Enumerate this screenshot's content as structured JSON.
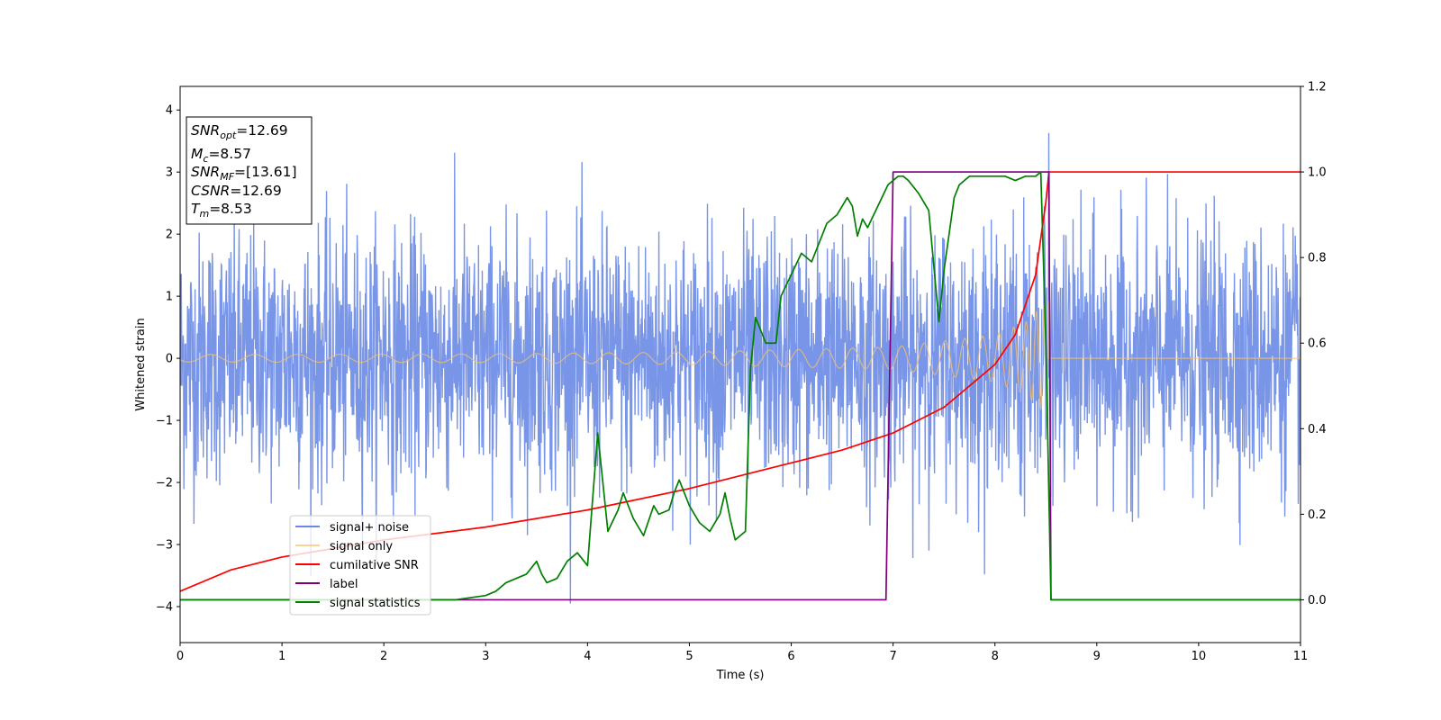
{
  "chart_data": {
    "type": "line",
    "xlabel": "Time (s)",
    "ylabel": "Whitened strain",
    "xlim": [
      0,
      11
    ],
    "ylim_left": [
      -4.58,
      4.38
    ],
    "ylim_right": [
      -0.1,
      1.2
    ],
    "x_ticks": [
      0,
      1,
      2,
      3,
      4,
      5,
      6,
      7,
      8,
      9,
      10,
      11
    ],
    "y_ticks_left": [
      -4,
      -3,
      -2,
      -1,
      0,
      1,
      2,
      3,
      4
    ],
    "y_ticks_right": [
      0.0,
      0.2,
      0.4,
      0.6,
      0.8,
      1.0,
      1.2
    ],
    "grid": false,
    "legend_position": "lower-left",
    "annotation": {
      "lines": [
        {
          "sym": "SNR",
          "sub": "opt",
          "value": "=12.69"
        },
        {
          "sym": "M",
          "sub": "c",
          "value": "=8.57"
        },
        {
          "sym": "SNR",
          "sub": "MF",
          "value": "=[13.61]"
        },
        {
          "sym": "CSNR",
          "sub": "",
          "value": "=12.69"
        },
        {
          "sym": "T",
          "sub": "m",
          "value": "=8.53"
        }
      ]
    },
    "series": [
      {
        "name": "signal+ noise",
        "axis": "left",
        "color": "#6a8ae6",
        "description_kind": "noise",
        "noise_sigma": 1.0,
        "noise_amplitude_range": [
          -4.15,
          4.0
        ]
      },
      {
        "name": "signal only",
        "axis": "left",
        "color": "#f5c26b",
        "description_kind": "chirp",
        "merger_time": 8.53,
        "amplitude_envelope": [
          [
            0,
            0.06
          ],
          [
            3,
            0.07
          ],
          [
            5,
            0.1
          ],
          [
            7,
            0.18
          ],
          [
            8,
            0.38
          ],
          [
            8.3,
            0.58
          ],
          [
            8.5,
            0.9
          ],
          [
            8.53,
            0.92
          ]
        ]
      },
      {
        "name": "cumilative SNR",
        "axis": "right",
        "color": "#ff0000",
        "x": [
          0,
          0.5,
          1,
          2,
          3,
          4,
          5,
          6,
          6.5,
          7,
          7.5,
          8,
          8.2,
          8.4,
          8.5,
          8.53,
          11
        ],
        "y": [
          0.02,
          0.07,
          0.1,
          0.14,
          0.17,
          0.21,
          0.26,
          0.32,
          0.35,
          0.39,
          0.45,
          0.55,
          0.62,
          0.76,
          0.93,
          1.0,
          1.0
        ]
      },
      {
        "name": "label",
        "axis": "right",
        "color": "#7f007f",
        "x": [
          0,
          6.93,
          7.0,
          8.53,
          8.55,
          11
        ],
        "y": [
          0,
          0,
          1,
          1,
          0,
          0
        ]
      },
      {
        "name": "signal statistics",
        "axis": "right",
        "color": "#007f00",
        "x": [
          0,
          0.5,
          1,
          1.5,
          2,
          2.5,
          2.7,
          3,
          3.1,
          3.2,
          3.3,
          3.4,
          3.5,
          3.55,
          3.6,
          3.7,
          3.8,
          3.9,
          4.0,
          4.1,
          4.2,
          4.3,
          4.35,
          4.45,
          4.55,
          4.65,
          4.7,
          4.8,
          4.85,
          4.9,
          5.0,
          5.1,
          5.2,
          5.3,
          5.35,
          5.4,
          5.45,
          5.55,
          5.6,
          5.65,
          5.75,
          5.85,
          5.9,
          6.0,
          6.1,
          6.2,
          6.3,
          6.35,
          6.45,
          6.55,
          6.6,
          6.65,
          6.7,
          6.75,
          6.85,
          6.95,
          7.05,
          7.1,
          7.15,
          7.25,
          7.35,
          7.45,
          7.5,
          7.6,
          7.65,
          7.75,
          7.85,
          7.95,
          8.0,
          8.1,
          8.2,
          8.3,
          8.4,
          8.45,
          8.5,
          8.55,
          8.6,
          11
        ],
        "y": [
          0,
          0.0,
          0.0,
          0.0,
          0.0,
          0.0,
          0.0,
          0.01,
          0.02,
          0.04,
          0.05,
          0.06,
          0.09,
          0.06,
          0.04,
          0.05,
          0.09,
          0.11,
          0.08,
          0.39,
          0.16,
          0.21,
          0.25,
          0.19,
          0.15,
          0.22,
          0.2,
          0.21,
          0.25,
          0.28,
          0.22,
          0.18,
          0.16,
          0.2,
          0.25,
          0.19,
          0.14,
          0.16,
          0.54,
          0.66,
          0.6,
          0.6,
          0.71,
          0.76,
          0.81,
          0.79,
          0.85,
          0.88,
          0.9,
          0.94,
          0.92,
          0.85,
          0.89,
          0.87,
          0.92,
          0.97,
          0.99,
          0.99,
          0.98,
          0.95,
          0.91,
          0.65,
          0.77,
          0.94,
          0.97,
          0.99,
          0.99,
          0.99,
          0.99,
          0.99,
          0.98,
          0.99,
          0.99,
          1.0,
          0.6,
          0.0,
          0.0,
          0.0
        ]
      }
    ]
  }
}
